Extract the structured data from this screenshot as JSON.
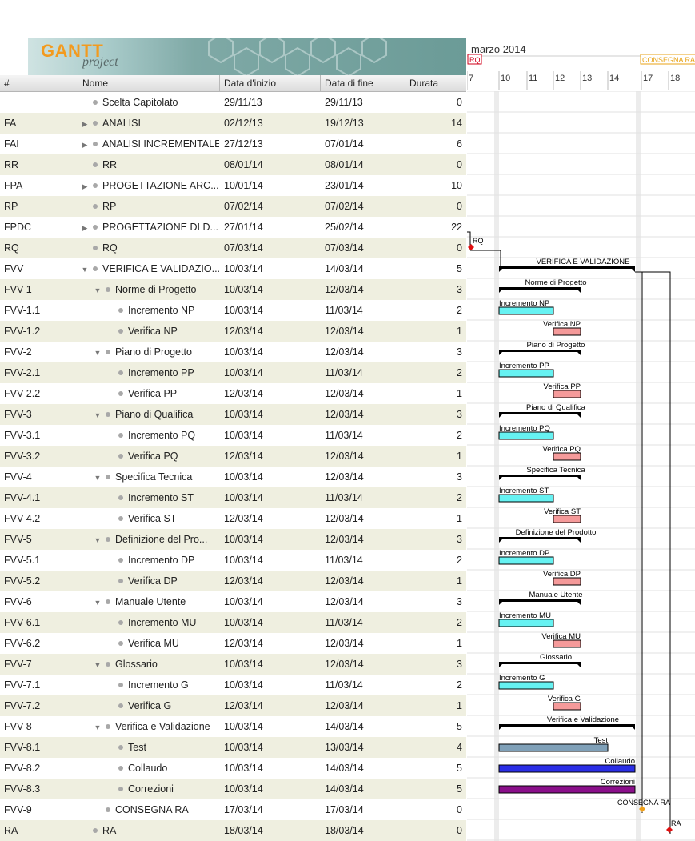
{
  "app": {
    "logo_text": "GANTT",
    "logo_sub": "project"
  },
  "table": {
    "columns": {
      "id": "#",
      "name": "Nome",
      "start": "Data d'inizio",
      "end": "Data di fine",
      "duration": "Durata"
    },
    "rows": [
      {
        "id": "",
        "name": "Scelta Capitolato",
        "start": "29/11/13",
        "end": "29/11/13",
        "duration": "0",
        "level": 0,
        "expander": ""
      },
      {
        "id": "FA",
        "name": "ANALISI",
        "start": "02/12/13",
        "end": "19/12/13",
        "duration": "14",
        "level": 0,
        "expander": "▶"
      },
      {
        "id": "FAI",
        "name": "ANALISI INCREMENTALE",
        "start": "27/12/13",
        "end": "07/01/14",
        "duration": "6",
        "level": 0,
        "expander": "▶"
      },
      {
        "id": "RR",
        "name": "RR",
        "start": "08/01/14",
        "end": "08/01/14",
        "duration": "0",
        "level": 0,
        "expander": ""
      },
      {
        "id": "FPA",
        "name": "PROGETTAZIONE ARC...",
        "start": "10/01/14",
        "end": "23/01/14",
        "duration": "10",
        "level": 0,
        "expander": "▶"
      },
      {
        "id": "RP",
        "name": "RP",
        "start": "07/02/14",
        "end": "07/02/14",
        "duration": "0",
        "level": 0,
        "expander": ""
      },
      {
        "id": "FPDC",
        "name": "PROGETTAZIONE DI D...",
        "start": "27/01/14",
        "end": "25/02/14",
        "duration": "22",
        "level": 0,
        "expander": "▶"
      },
      {
        "id": "RQ",
        "name": "RQ",
        "start": "07/03/14",
        "end": "07/03/14",
        "duration": "0",
        "level": 0,
        "expander": ""
      },
      {
        "id": "FVV",
        "name": "VERIFICA E VALIDAZIO...",
        "start": "10/03/14",
        "end": "14/03/14",
        "duration": "5",
        "level": 0,
        "expander": "▼"
      },
      {
        "id": "FVV-1",
        "name": "Norme di Progetto",
        "start": "10/03/14",
        "end": "12/03/14",
        "duration": "3",
        "level": 1,
        "expander": "▼"
      },
      {
        "id": "FVV-1.1",
        "name": "Incremento NP",
        "start": "10/03/14",
        "end": "11/03/14",
        "duration": "2",
        "level": 2,
        "expander": ""
      },
      {
        "id": "FVV-1.2",
        "name": "Verifica NP",
        "start": "12/03/14",
        "end": "12/03/14",
        "duration": "1",
        "level": 2,
        "expander": ""
      },
      {
        "id": "FVV-2",
        "name": "Piano di Progetto",
        "start": "10/03/14",
        "end": "12/03/14",
        "duration": "3",
        "level": 1,
        "expander": "▼"
      },
      {
        "id": "FVV-2.1",
        "name": "Incremento PP",
        "start": "10/03/14",
        "end": "11/03/14",
        "duration": "2",
        "level": 2,
        "expander": ""
      },
      {
        "id": "FVV-2.2",
        "name": "Verifica PP",
        "start": "12/03/14",
        "end": "12/03/14",
        "duration": "1",
        "level": 2,
        "expander": ""
      },
      {
        "id": "FVV-3",
        "name": "Piano di Qualifica",
        "start": "10/03/14",
        "end": "12/03/14",
        "duration": "3",
        "level": 1,
        "expander": "▼"
      },
      {
        "id": "FVV-3.1",
        "name": "Incremento PQ",
        "start": "10/03/14",
        "end": "11/03/14",
        "duration": "2",
        "level": 2,
        "expander": ""
      },
      {
        "id": "FVV-3.2",
        "name": "Verifica PQ",
        "start": "12/03/14",
        "end": "12/03/14",
        "duration": "1",
        "level": 2,
        "expander": ""
      },
      {
        "id": "FVV-4",
        "name": "Specifica Tecnica",
        "start": "10/03/14",
        "end": "12/03/14",
        "duration": "3",
        "level": 1,
        "expander": "▼"
      },
      {
        "id": "FVV-4.1",
        "name": "Incremento ST",
        "start": "10/03/14",
        "end": "11/03/14",
        "duration": "2",
        "level": 2,
        "expander": ""
      },
      {
        "id": "FVV-4.2",
        "name": "Verifica ST",
        "start": "12/03/14",
        "end": "12/03/14",
        "duration": "1",
        "level": 2,
        "expander": ""
      },
      {
        "id": "FVV-5",
        "name": "Definizione del Pro...",
        "start": "10/03/14",
        "end": "12/03/14",
        "duration": "3",
        "level": 1,
        "expander": "▼"
      },
      {
        "id": "FVV-5.1",
        "name": "Incremento DP",
        "start": "10/03/14",
        "end": "11/03/14",
        "duration": "2",
        "level": 2,
        "expander": ""
      },
      {
        "id": "FVV-5.2",
        "name": "Verifica DP",
        "start": "12/03/14",
        "end": "12/03/14",
        "duration": "1",
        "level": 2,
        "expander": ""
      },
      {
        "id": "FVV-6",
        "name": "Manuale Utente",
        "start": "10/03/14",
        "end": "12/03/14",
        "duration": "3",
        "level": 1,
        "expander": "▼"
      },
      {
        "id": "FVV-6.1",
        "name": "Incremento MU",
        "start": "10/03/14",
        "end": "11/03/14",
        "duration": "2",
        "level": 2,
        "expander": ""
      },
      {
        "id": "FVV-6.2",
        "name": "Verifica MU",
        "start": "12/03/14",
        "end": "12/03/14",
        "duration": "1",
        "level": 2,
        "expander": ""
      },
      {
        "id": "FVV-7",
        "name": "Glossario",
        "start": "10/03/14",
        "end": "12/03/14",
        "duration": "3",
        "level": 1,
        "expander": "▼"
      },
      {
        "id": "FVV-7.1",
        "name": "Incremento G",
        "start": "10/03/14",
        "end": "11/03/14",
        "duration": "2",
        "level": 2,
        "expander": ""
      },
      {
        "id": "FVV-7.2",
        "name": "Verifica G",
        "start": "12/03/14",
        "end": "12/03/14",
        "duration": "1",
        "level": 2,
        "expander": ""
      },
      {
        "id": "FVV-8",
        "name": "Verifica e Validazione",
        "start": "10/03/14",
        "end": "14/03/14",
        "duration": "5",
        "level": 1,
        "expander": "▼"
      },
      {
        "id": "FVV-8.1",
        "name": "Test",
        "start": "10/03/14",
        "end": "13/03/14",
        "duration": "4",
        "level": 2,
        "expander": ""
      },
      {
        "id": "FVV-8.2",
        "name": "Collaudo",
        "start": "10/03/14",
        "end": "14/03/14",
        "duration": "5",
        "level": 2,
        "expander": ""
      },
      {
        "id": "FVV-8.3",
        "name": "Correzioni",
        "start": "10/03/14",
        "end": "14/03/14",
        "duration": "5",
        "level": 2,
        "expander": ""
      },
      {
        "id": "FVV-9",
        "name": "CONSEGNA RA",
        "start": "17/03/14",
        "end": "17/03/14",
        "duration": "0",
        "level": 1,
        "expander": ""
      },
      {
        "id": "RA",
        "name": "RA",
        "start": "18/03/14",
        "end": "18/03/14",
        "duration": "0",
        "level": 0,
        "expander": ""
      }
    ]
  },
  "timeline": {
    "month_label": "marzo 2014",
    "day_labels": [
      "7",
      "10",
      "11",
      "12",
      "13",
      "14",
      "17",
      "18"
    ],
    "milestones_header": [
      {
        "label": "RQ",
        "color": "#d0021b"
      },
      {
        "label": "CONSEGNA RA",
        "color": "#e8a317"
      }
    ]
  },
  "chart_data": {
    "type": "gantt",
    "tasks": [
      {
        "row": 7,
        "label": "RQ",
        "kind": "milestone",
        "start": "07/03/14",
        "color": "#e01010"
      },
      {
        "row": 8,
        "label": "VERIFICA E VALIDAZIONE",
        "kind": "summary",
        "start": "10/03/14",
        "end": "14/03/14"
      },
      {
        "row": 9,
        "label": "Norme di Progetto",
        "kind": "summary",
        "start": "10/03/14",
        "end": "12/03/14"
      },
      {
        "row": 10,
        "label": "Incremento NP",
        "kind": "task",
        "start": "10/03/14",
        "end": "11/03/14",
        "color": "#66f2f2"
      },
      {
        "row": 11,
        "label": "Verifica NP",
        "kind": "task",
        "start": "12/03/14",
        "end": "12/03/14",
        "color": "#f59a9a"
      },
      {
        "row": 12,
        "label": "Piano di Progetto",
        "kind": "summary",
        "start": "10/03/14",
        "end": "12/03/14"
      },
      {
        "row": 13,
        "label": "Incremento PP",
        "kind": "task",
        "start": "10/03/14",
        "end": "11/03/14",
        "color": "#66f2f2"
      },
      {
        "row": 14,
        "label": "Verifica PP",
        "kind": "task",
        "start": "12/03/14",
        "end": "12/03/14",
        "color": "#f59a9a"
      },
      {
        "row": 15,
        "label": "Piano di Qualifica",
        "kind": "summary",
        "start": "10/03/14",
        "end": "12/03/14"
      },
      {
        "row": 16,
        "label": "Incremento PQ",
        "kind": "task",
        "start": "10/03/14",
        "end": "11/03/14",
        "color": "#66f2f2"
      },
      {
        "row": 17,
        "label": "Verifica PQ",
        "kind": "task",
        "start": "12/03/14",
        "end": "12/03/14",
        "color": "#f59a9a"
      },
      {
        "row": 18,
        "label": "Specifica Tecnica",
        "kind": "summary",
        "start": "10/03/14",
        "end": "12/03/14"
      },
      {
        "row": 19,
        "label": "Incremento ST",
        "kind": "task",
        "start": "10/03/14",
        "end": "11/03/14",
        "color": "#66f2f2"
      },
      {
        "row": 20,
        "label": "Verifica ST",
        "kind": "task",
        "start": "12/03/14",
        "end": "12/03/14",
        "color": "#f59a9a"
      },
      {
        "row": 21,
        "label": "Definizione del Prodotto",
        "kind": "summary",
        "start": "10/03/14",
        "end": "12/03/14"
      },
      {
        "row": 22,
        "label": "Incremento DP",
        "kind": "task",
        "start": "10/03/14",
        "end": "11/03/14",
        "color": "#66f2f2"
      },
      {
        "row": 23,
        "label": "Verifica DP",
        "kind": "task",
        "start": "12/03/14",
        "end": "12/03/14",
        "color": "#f59a9a"
      },
      {
        "row": 24,
        "label": "Manuale Utente",
        "kind": "summary",
        "start": "10/03/14",
        "end": "12/03/14"
      },
      {
        "row": 25,
        "label": "Incremento MU",
        "kind": "task",
        "start": "10/03/14",
        "end": "11/03/14",
        "color": "#66f2f2"
      },
      {
        "row": 26,
        "label": "Verifica MU",
        "kind": "task",
        "start": "12/03/14",
        "end": "12/03/14",
        "color": "#f59a9a"
      },
      {
        "row": 27,
        "label": "Glossario",
        "kind": "summary",
        "start": "10/03/14",
        "end": "12/03/14"
      },
      {
        "row": 28,
        "label": "Incremento G",
        "kind": "task",
        "start": "10/03/14",
        "end": "11/03/14",
        "color": "#66f2f2"
      },
      {
        "row": 29,
        "label": "Verifica G",
        "kind": "task",
        "start": "12/03/14",
        "end": "12/03/14",
        "color": "#f59a9a"
      },
      {
        "row": 30,
        "label": "Verifica e Validazione",
        "kind": "summary",
        "start": "10/03/14",
        "end": "14/03/14"
      },
      {
        "row": 31,
        "label": "Test",
        "kind": "task",
        "start": "10/03/14",
        "end": "13/03/14",
        "color": "#7fa0b8"
      },
      {
        "row": 32,
        "label": "Collaudo",
        "kind": "task",
        "start": "10/03/14",
        "end": "14/03/14",
        "color": "#2a2ee6"
      },
      {
        "row": 33,
        "label": "Correzioni",
        "kind": "task",
        "start": "10/03/14",
        "end": "14/03/14",
        "color": "#8a0f8a"
      },
      {
        "row": 34,
        "label": "CONSEGNA RA",
        "kind": "milestone",
        "start": "17/03/14",
        "color": "#f0a01a"
      },
      {
        "row": 35,
        "label": "RA",
        "kind": "milestone",
        "start": "18/03/14",
        "color": "#e01010"
      }
    ]
  }
}
